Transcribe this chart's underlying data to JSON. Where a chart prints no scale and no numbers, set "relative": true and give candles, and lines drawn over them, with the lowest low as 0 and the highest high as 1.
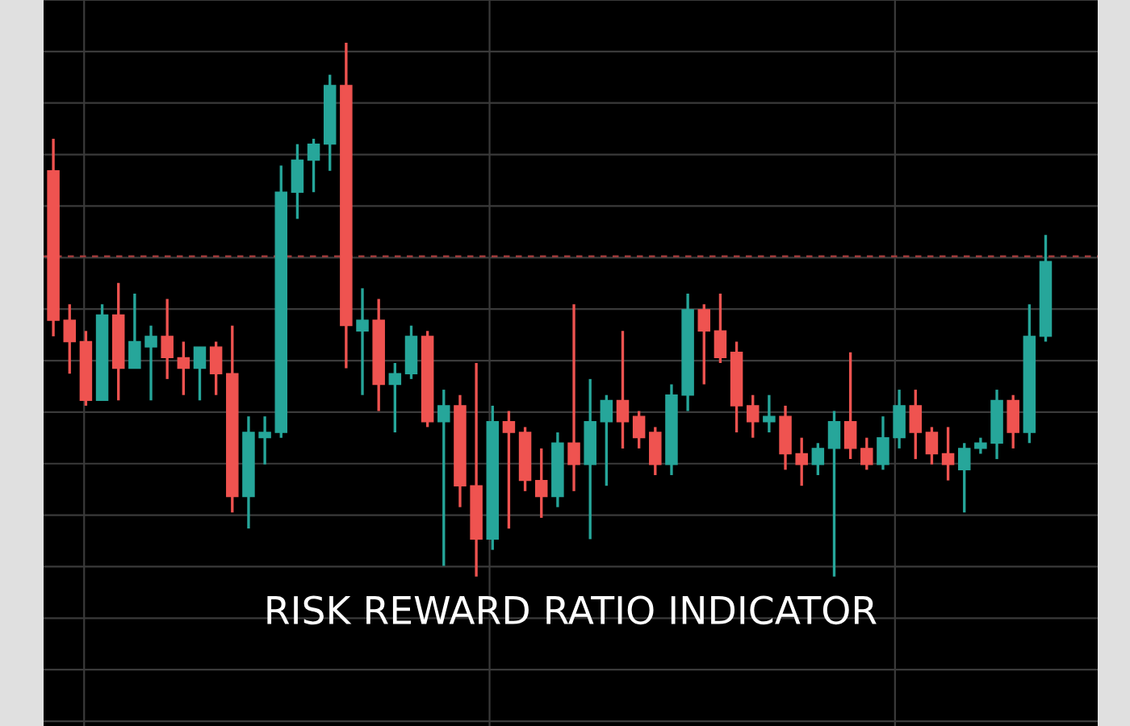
{
  "chart_data": {
    "type": "candlestick",
    "title": "RISK REWARD RATIO INDICATOR",
    "relative": true,
    "grid": true,
    "categories": [
      null,
      null,
      null,
      null,
      null,
      null,
      null,
      null,
      null,
      null,
      null,
      null,
      null,
      null,
      null,
      null,
      null,
      null,
      null,
      null,
      null,
      null,
      null,
      null,
      null,
      null,
      null,
      null,
      null,
      null,
      null,
      null,
      null,
      null,
      null,
      null,
      null,
      null,
      null,
      null,
      null,
      null,
      null,
      null,
      null,
      null,
      null,
      null,
      null,
      null,
      null,
      null,
      null,
      null,
      null,
      null,
      null,
      null,
      null,
      null,
      null,
      null
    ],
    "ohlc": [
      [
        0.76,
        0.82,
        0.45,
        0.48
      ],
      [
        0.48,
        0.51,
        0.38,
        0.44
      ],
      [
        0.44,
        0.46,
        0.32,
        0.33
      ],
      [
        0.33,
        0.51,
        0.33,
        0.49
      ],
      [
        0.49,
        0.55,
        0.33,
        0.39
      ],
      [
        0.39,
        0.53,
        0.39,
        0.44
      ],
      [
        0.43,
        0.47,
        0.33,
        0.45
      ],
      [
        0.45,
        0.52,
        0.37,
        0.41
      ],
      [
        0.41,
        0.44,
        0.34,
        0.39
      ],
      [
        0.39,
        0.43,
        0.33,
        0.43
      ],
      [
        0.43,
        0.44,
        0.34,
        0.38
      ],
      [
        0.38,
        0.47,
        0.12,
        0.15
      ],
      [
        0.15,
        0.3,
        0.09,
        0.27
      ],
      [
        0.26,
        0.3,
        0.21,
        0.27
      ],
      [
        0.27,
        0.77,
        0.26,
        0.72
      ],
      [
        0.72,
        0.81,
        0.67,
        0.78
      ],
      [
        0.78,
        0.82,
        0.72,
        0.81
      ],
      [
        0.81,
        0.94,
        0.76,
        0.92
      ],
      [
        0.92,
        1.0,
        0.39,
        0.47
      ],
      [
        0.46,
        0.54,
        0.34,
        0.48
      ],
      [
        0.48,
        0.52,
        0.31,
        0.36
      ],
      [
        0.36,
        0.4,
        0.27,
        0.38
      ],
      [
        0.38,
        0.47,
        0.37,
        0.45
      ],
      [
        0.45,
        0.46,
        0.28,
        0.29
      ],
      [
        0.29,
        0.35,
        0.02,
        0.32
      ],
      [
        0.32,
        0.34,
        0.13,
        0.17
      ],
      [
        0.17,
        0.4,
        0.0,
        0.07
      ],
      [
        0.07,
        0.32,
        0.05,
        0.29
      ],
      [
        0.29,
        0.31,
        0.09,
        0.27
      ],
      [
        0.27,
        0.28,
        0.16,
        0.18
      ],
      [
        0.18,
        0.24,
        0.11,
        0.15
      ],
      [
        0.15,
        0.27,
        0.13,
        0.25
      ],
      [
        0.25,
        0.51,
        0.16,
        0.21
      ],
      [
        0.21,
        0.37,
        0.07,
        0.29
      ],
      [
        0.29,
        0.34,
        0.17,
        0.33
      ],
      [
        0.33,
        0.46,
        0.24,
        0.29
      ],
      [
        0.3,
        0.31,
        0.24,
        0.26
      ],
      [
        0.27,
        0.28,
        0.19,
        0.21
      ],
      [
        0.21,
        0.36,
        0.19,
        0.34
      ],
      [
        0.34,
        0.53,
        0.31,
        0.5
      ],
      [
        0.5,
        0.51,
        0.36,
        0.46
      ],
      [
        0.46,
        0.53,
        0.4,
        0.41
      ],
      [
        0.42,
        0.44,
        0.27,
        0.32
      ],
      [
        0.32,
        0.34,
        0.26,
        0.29
      ],
      [
        0.29,
        0.34,
        0.27,
        0.3
      ],
      [
        0.3,
        0.32,
        0.2,
        0.23
      ],
      [
        0.23,
        0.26,
        0.17,
        0.21
      ],
      [
        0.21,
        0.25,
        0.19,
        0.24
      ],
      [
        0.24,
        0.31,
        0.0,
        0.29
      ],
      [
        0.29,
        0.42,
        0.22,
        0.24
      ],
      [
        0.24,
        0.26,
        0.2,
        0.21
      ],
      [
        0.21,
        0.3,
        0.2,
        0.26
      ],
      [
        0.26,
        0.35,
        0.24,
        0.32
      ],
      [
        0.32,
        0.35,
        0.22,
        0.27
      ],
      [
        0.27,
        0.28,
        0.21,
        0.23
      ],
      [
        0.23,
        0.28,
        0.18,
        0.21
      ],
      [
        0.2,
        0.25,
        0.12,
        0.24
      ],
      [
        0.24,
        0.26,
        0.23,
        0.25
      ],
      [
        0.25,
        0.35,
        0.22,
        0.33
      ],
      [
        0.33,
        0.34,
        0.24,
        0.27
      ],
      [
        0.27,
        0.51,
        0.25,
        0.45
      ],
      [
        0.45,
        0.64,
        0.44,
        0.59
      ]
    ],
    "colors": [
      "#ef5350",
      "#ef5350",
      "#ef5350",
      "#26a69a",
      "#ef5350",
      "#26a69a",
      "#26a69a",
      "#ef5350",
      "#ef5350",
      "#26a69a",
      "#ef5350",
      "#ef5350",
      "#26a69a",
      "#26a69a",
      "#26a69a",
      "#26a69a",
      "#26a69a",
      "#26a69a",
      "#ef5350",
      "#26a69a",
      "#ef5350",
      "#26a69a",
      "#26a69a",
      "#ef5350",
      "#26a69a",
      "#ef5350",
      "#ef5350",
      "#26a69a",
      "#ef5350",
      "#ef5350",
      "#ef5350",
      "#26a69a",
      "#ef5350",
      "#26a69a",
      "#26a69a",
      "#ef5350",
      "#ef5350",
      "#ef5350",
      "#26a69a",
      "#26a69a",
      "#ef5350",
      "#ef5350",
      "#ef5350",
      "#ef5350",
      "#26a69a",
      "#ef5350",
      "#ef5350",
      "#26a69a",
      "#26a69a",
      "#ef5350",
      "#ef5350",
      "#26a69a",
      "#26a69a",
      "#ef5350",
      "#ef5350",
      "#ef5350",
      "#26a69a",
      "#26a69a",
      "#26a69a",
      "#ef5350",
      "#26a69a",
      "#26a69a"
    ],
    "ref_lines": [
      {
        "axis": "y",
        "value": 0.6,
        "color": "#9e3b3b",
        "line_style": "dashed"
      }
    ]
  }
}
